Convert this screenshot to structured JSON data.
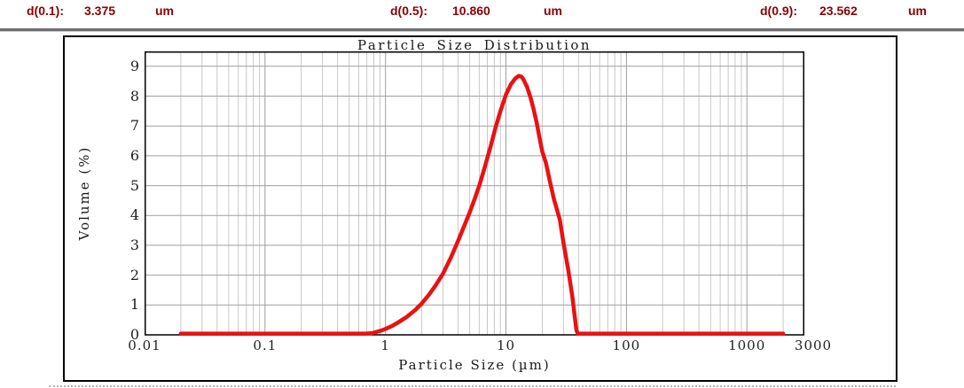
{
  "header": {
    "text_color": "#8B0000",
    "stats": [
      {
        "label": "d(0.1):",
        "value": "3.375",
        "unit": "um"
      },
      {
        "label": "d(0.5):",
        "value": "10.860",
        "unit": "um"
      },
      {
        "label": "d(0.9):",
        "value": "23.562",
        "unit": "um"
      }
    ]
  },
  "chart_data": {
    "type": "line",
    "title": "Particle Size Distribution",
    "xlabel": "Particle Size (µm)",
    "ylabel": "Volume (%)",
    "x_scale": "log",
    "xlim": [
      0.01,
      3000
    ],
    "ylim": [
      0,
      9.5
    ],
    "grid": true,
    "legend_position": "none",
    "line_color": "#e81212",
    "grid_minor_color": "#c8c8c8",
    "grid_major_color": "#9f9f9f",
    "x_ticks": [
      {
        "v": 0.01,
        "label": "0.01"
      },
      {
        "v": 0.1,
        "label": "0.1"
      },
      {
        "v": 1,
        "label": "1"
      },
      {
        "v": 10,
        "label": "10"
      },
      {
        "v": 100,
        "label": "100"
      },
      {
        "v": 1000,
        "label": "1000"
      },
      {
        "v": 3000,
        "label": "3000",
        "dx": 10
      }
    ],
    "y_ticks": [
      0,
      1,
      2,
      3,
      4,
      5,
      6,
      7,
      8,
      9
    ],
    "series": [
      {
        "name": "Volume (%)",
        "points": [
          [
            0.02,
            0
          ],
          [
            0.05,
            0
          ],
          [
            0.1,
            0
          ],
          [
            0.2,
            0
          ],
          [
            0.3,
            0
          ],
          [
            0.4,
            0
          ],
          [
            0.5,
            0
          ],
          [
            0.6,
            0
          ],
          [
            0.68,
            0.02
          ],
          [
            0.75,
            0.05
          ],
          [
            0.8,
            0.07
          ],
          [
            0.9,
            0.13
          ],
          [
            1.0,
            0.2
          ],
          [
            1.15,
            0.31
          ],
          [
            1.3,
            0.44
          ],
          [
            1.5,
            0.6
          ],
          [
            1.75,
            0.82
          ],
          [
            2.0,
            1.05
          ],
          [
            2.3,
            1.35
          ],
          [
            2.6,
            1.65
          ],
          [
            3.0,
            2.05
          ],
          [
            3.5,
            2.6
          ],
          [
            4.0,
            3.15
          ],
          [
            4.5,
            3.65
          ],
          [
            5.0,
            4.1
          ],
          [
            5.5,
            4.55
          ],
          [
            6.0,
            5.0
          ],
          [
            6.7,
            5.65
          ],
          [
            7.5,
            6.35
          ],
          [
            8.2,
            6.95
          ],
          [
            9.0,
            7.5
          ],
          [
            10.0,
            8.05
          ],
          [
            11.0,
            8.4
          ],
          [
            12.0,
            8.6
          ],
          [
            12.8,
            8.68
          ],
          [
            13.5,
            8.65
          ],
          [
            14.0,
            8.55
          ],
          [
            15.0,
            8.3
          ],
          [
            16.0,
            7.95
          ],
          [
            17.0,
            7.55
          ],
          [
            18.0,
            7.1
          ],
          [
            19.0,
            6.6
          ],
          [
            20.0,
            6.15
          ],
          [
            21.5,
            5.75
          ],
          [
            23.0,
            5.2
          ],
          [
            25.0,
            4.55
          ],
          [
            26.5,
            4.2
          ],
          [
            28.0,
            3.85
          ],
          [
            30.0,
            3.1
          ],
          [
            33.0,
            2.15
          ],
          [
            35.5,
            1.3
          ],
          [
            37.0,
            0.7
          ],
          [
            38.5,
            0.15
          ],
          [
            39.5,
            0.03
          ],
          [
            40.5,
            0
          ],
          [
            50,
            0
          ],
          [
            70,
            0
          ],
          [
            100,
            0
          ],
          [
            200,
            0
          ],
          [
            500,
            0
          ],
          [
            1000,
            0
          ],
          [
            1500,
            0
          ],
          [
            2000,
            0
          ]
        ]
      }
    ]
  }
}
